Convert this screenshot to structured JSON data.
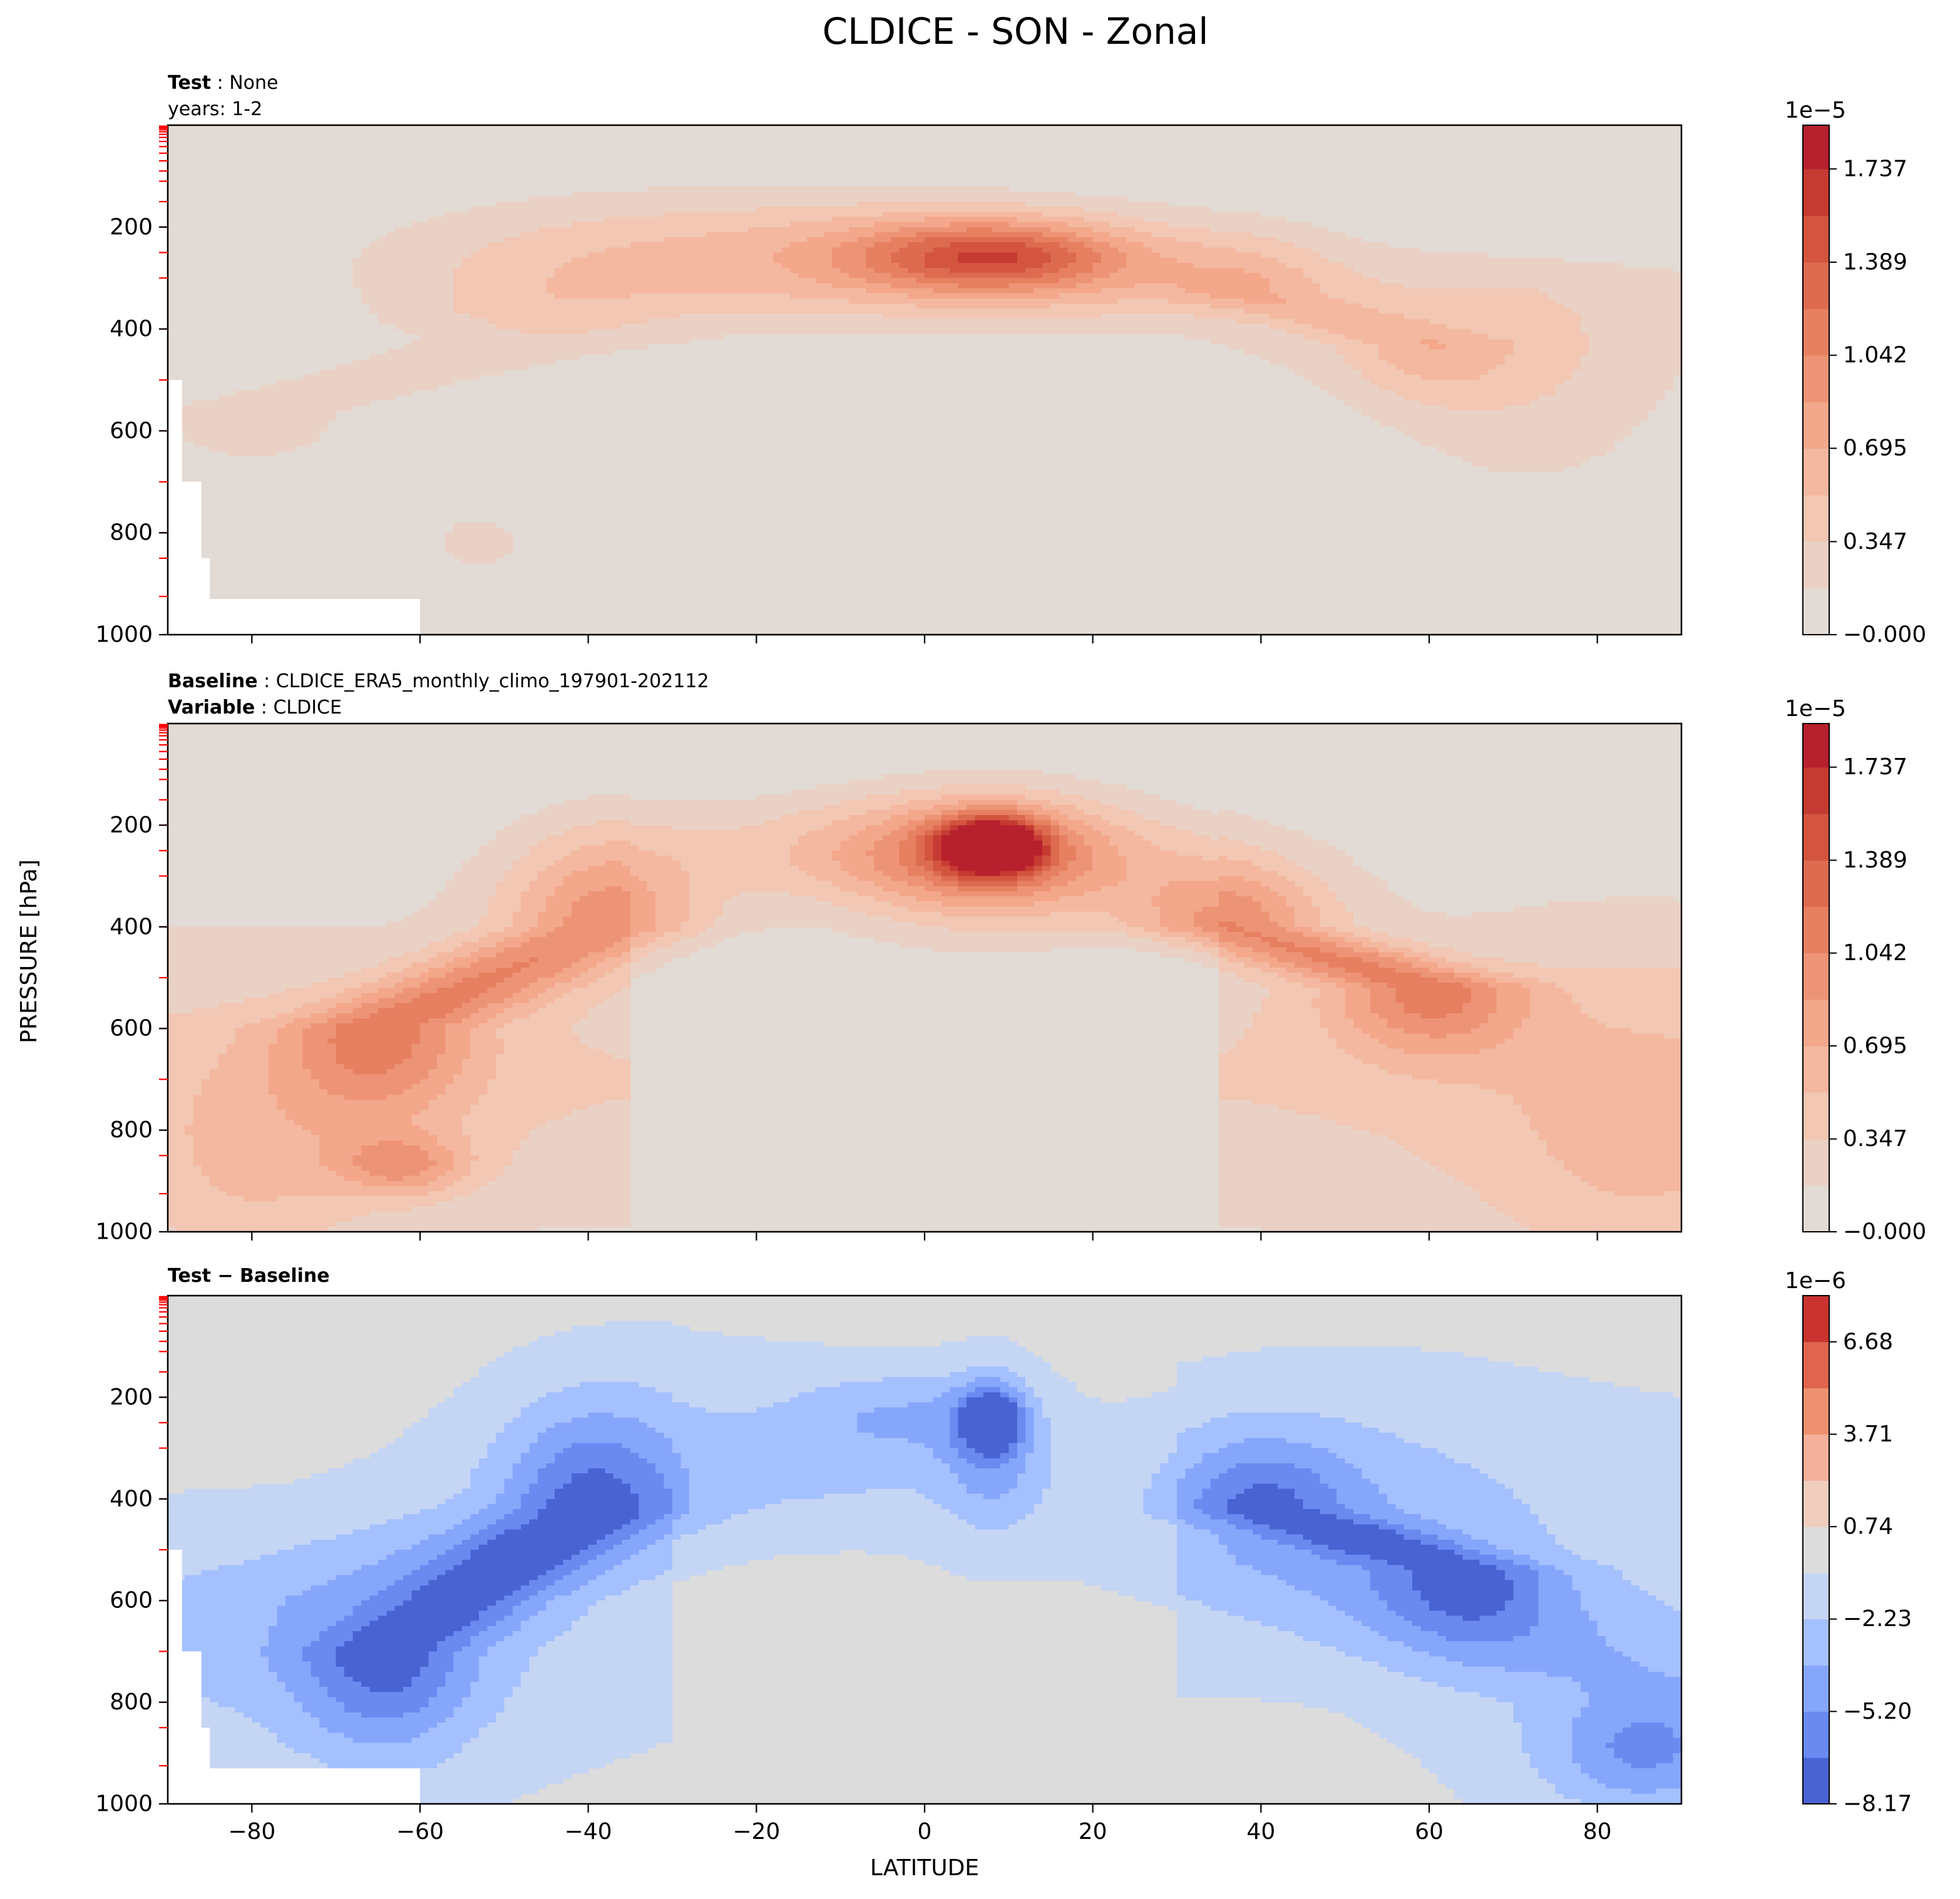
{
  "title": "CLDICE - SON - Zonal",
  "ylabel": "PRESSURE [hPa]",
  "xlabel": "LATITUDE",
  "chart_data": [
    {
      "type": "contour",
      "panel": "test",
      "label_lines": [
        {
          "bold": "Test",
          "sep": " : ",
          "text": "None"
        },
        {
          "bold": "",
          "sep": "",
          "text": "years: 1-2"
        }
      ],
      "xlim": [
        -90,
        90
      ],
      "ylim": [
        1000,
        0
      ],
      "x_ticks": [
        -80,
        -60,
        -40,
        -20,
        0,
        20,
        40,
        60,
        80
      ],
      "x_tick_labels": [],
      "y_ticks": [
        200,
        400,
        600,
        800,
        1000
      ],
      "y_tick_labels": [
        "200",
        "400",
        "600",
        "800",
        "1000"
      ],
      "colormap": "coolwarm",
      "background_value": 0.0,
      "colorbar": {
        "multiplier": "1e−5",
        "levels": [
          0.0,
          0.1736,
          0.3473,
          0.5209,
          0.6946,
          0.8682,
          1.0419,
          1.2155,
          1.3892,
          1.5628,
          1.7365,
          1.9
        ],
        "tick_values": [
          0.0,
          0.347,
          0.695,
          1.042,
          1.389,
          1.737
        ],
        "tick_labels": [
          "−0.000",
          "0.347",
          "0.695",
          "1.042",
          "1.389",
          "1.737"
        ],
        "band_colors": [
          "#e2dad4",
          "#ead1c5",
          "#f2c7b3",
          "#f4b8a0",
          "#f3a78b",
          "#ee9476",
          "#e68061",
          "#dd6b50",
          "#d3543f",
          "#c53a32",
          "#b7202d"
        ]
      }
    },
    {
      "type": "contour",
      "panel": "baseline",
      "label_lines": [
        {
          "bold": "Baseline",
          "sep": " : ",
          "text": "CLDICE_ERA5_monthly_climo_197901-202112"
        },
        {
          "bold": "Variable",
          "sep": " : ",
          "text": "CLDICE"
        }
      ],
      "xlim": [
        -90,
        90
      ],
      "ylim": [
        1000,
        0
      ],
      "x_ticks": [
        -80,
        -60,
        -40,
        -20,
        0,
        20,
        40,
        60,
        80
      ],
      "x_tick_labels": [],
      "y_ticks": [
        200,
        400,
        600,
        800,
        1000
      ],
      "y_tick_labels": [
        "200",
        "400",
        "600",
        "800",
        "1000"
      ],
      "colormap": "coolwarm",
      "background_value": 0.0,
      "colorbar": {
        "multiplier": "1e−5",
        "levels": [
          0.0,
          0.1736,
          0.3473,
          0.5209,
          0.6946,
          0.8682,
          1.0419,
          1.2155,
          1.3892,
          1.5628,
          1.7365,
          1.9
        ],
        "tick_values": [
          0.0,
          0.347,
          0.695,
          1.042,
          1.389,
          1.737
        ],
        "tick_labels": [
          "−0.000",
          "0.347",
          "0.695",
          "1.042",
          "1.389",
          "1.737"
        ],
        "band_colors": [
          "#e2dad4",
          "#ead1c5",
          "#f2c7b3",
          "#f4b8a0",
          "#f3a78b",
          "#ee9476",
          "#e68061",
          "#dd6b50",
          "#d3543f",
          "#c53a32",
          "#b7202d"
        ]
      }
    },
    {
      "type": "contour",
      "panel": "difference",
      "label_lines": [
        {
          "bold": "Test − Baseline",
          "sep": "",
          "text": ""
        }
      ],
      "xlim": [
        -90,
        90
      ],
      "ylim": [
        1000,
        0
      ],
      "x_ticks": [
        -80,
        -60,
        -40,
        -20,
        0,
        20,
        40,
        60,
        80
      ],
      "x_tick_labels": [
        "−80",
        "−60",
        "−40",
        "−20",
        "0",
        "20",
        "40",
        "60",
        "80"
      ],
      "y_ticks": [
        200,
        400,
        600,
        800,
        1000
      ],
      "y_tick_labels": [
        "200",
        "400",
        "600",
        "800",
        "1000"
      ],
      "colormap": "coolwarm",
      "background_value": 0.0,
      "colorbar": {
        "multiplier": "1e−6",
        "levels": [
          -8.17,
          -6.685,
          -5.2,
          -3.715,
          -2.23,
          -0.745,
          0.74,
          2.225,
          3.71,
          5.195,
          6.68,
          8.165
        ],
        "tick_values": [
          -8.17,
          -5.2,
          -2.23,
          0.74,
          3.71,
          6.68
        ],
        "tick_labels": [
          "−8.17",
          "−5.20",
          "−2.23",
          "0.74",
          "3.71",
          "6.68"
        ],
        "band_colors": [
          "#4a63d3",
          "#6a8af0",
          "#86a6fb",
          "#a4c0fe",
          "#c5d5f4",
          "#dcdcdc",
          "#f1cdbd",
          "#f4b09a",
          "#ee9071",
          "#e0654f",
          "#c93431"
        ]
      }
    }
  ]
}
